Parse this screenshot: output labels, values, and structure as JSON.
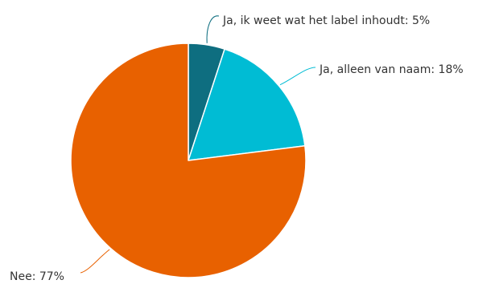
{
  "chart_data": {
    "type": "pie",
    "title": "",
    "slices": [
      {
        "label": "Ja, ik weet wat het label inhoudt: 5%",
        "category": "Ja, ik weet wat het label inhoudt",
        "value": 5,
        "color": "#0e6e80"
      },
      {
        "label": "Ja, alleen van naam: 18%",
        "category": "Ja, alleen van naam",
        "value": 18,
        "color": "#00bcd4"
      },
      {
        "label": "Nee: 77%",
        "category": "Nee",
        "value": 77,
        "color": "#e86100"
      }
    ],
    "legend": "none",
    "start_angle_deg": 0,
    "direction": "clockwise"
  }
}
